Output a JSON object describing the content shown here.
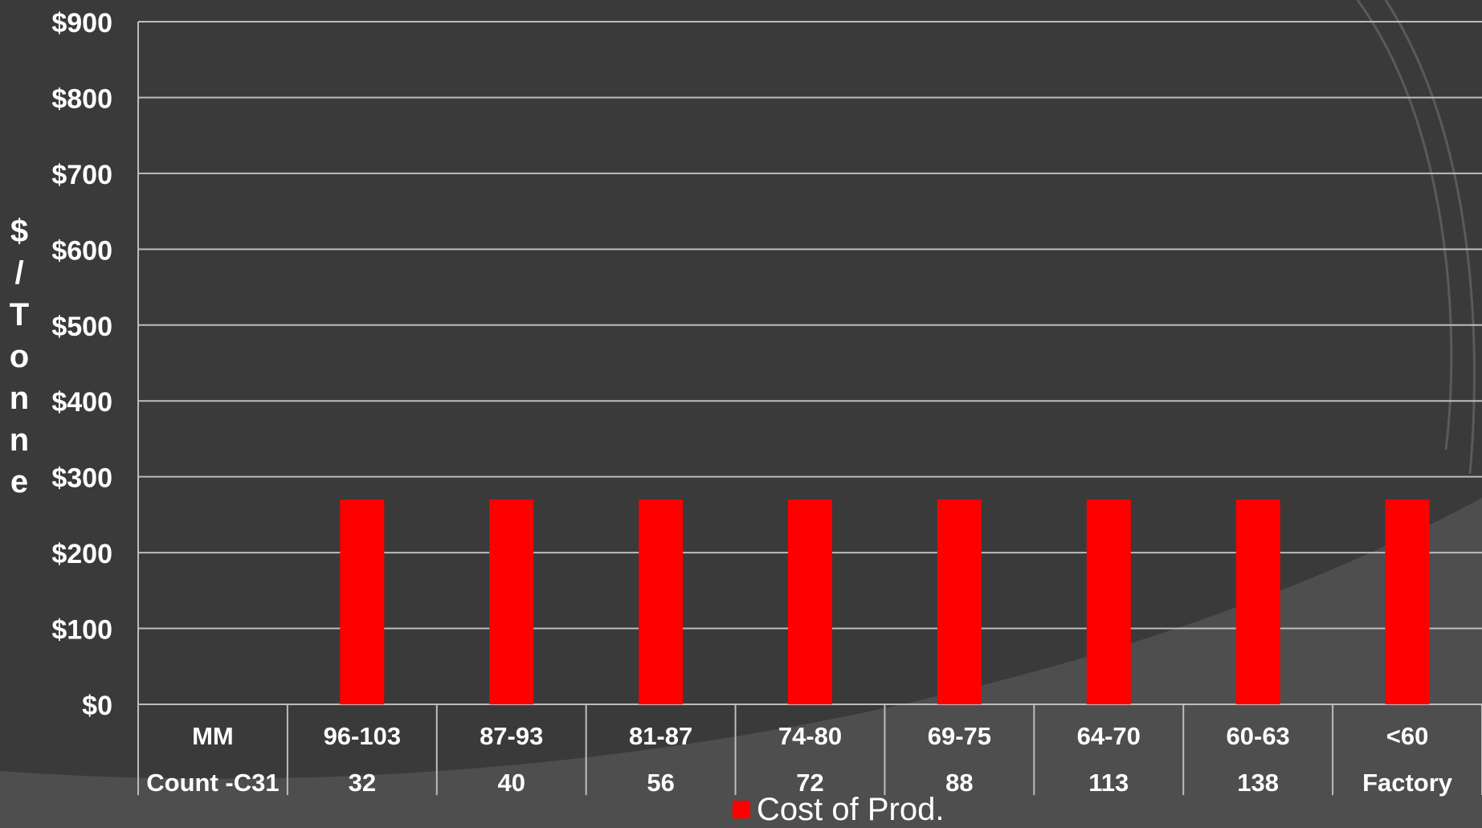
{
  "colors": {
    "background": "#3a3a3a",
    "background_arc": "#4e4e4e",
    "grid": "#bdbdbd",
    "bar": "#ff0000",
    "text": "#ffffff"
  },
  "chart_data": {
    "type": "bar",
    "title": "",
    "ylabel": "$/Tonne",
    "ylim": [
      0,
      900
    ],
    "yticks": [
      0,
      100,
      200,
      300,
      400,
      500,
      600,
      700,
      800,
      900
    ],
    "ytick_labels": [
      "$0",
      "$100",
      "$200",
      "$300",
      "$400",
      "$500",
      "$600",
      "$700",
      "$800",
      "$900"
    ],
    "grid": true,
    "table_rows": [
      {
        "header": "MM",
        "cells": [
          "96-103",
          "87-93",
          "81-87",
          "74-80",
          "69-75",
          "64-70",
          "60-63",
          "<60"
        ]
      },
      {
        "header": "Count -C31",
        "cells": [
          "32",
          "40",
          "56",
          "72",
          "88",
          "113",
          "138",
          "Factory"
        ]
      }
    ],
    "series": [
      {
        "name": "Cost of Prod.",
        "color": "#ff0000",
        "values": [
          270,
          270,
          270,
          270,
          270,
          270,
          270,
          270
        ]
      }
    ],
    "legend_position": "bottom"
  }
}
